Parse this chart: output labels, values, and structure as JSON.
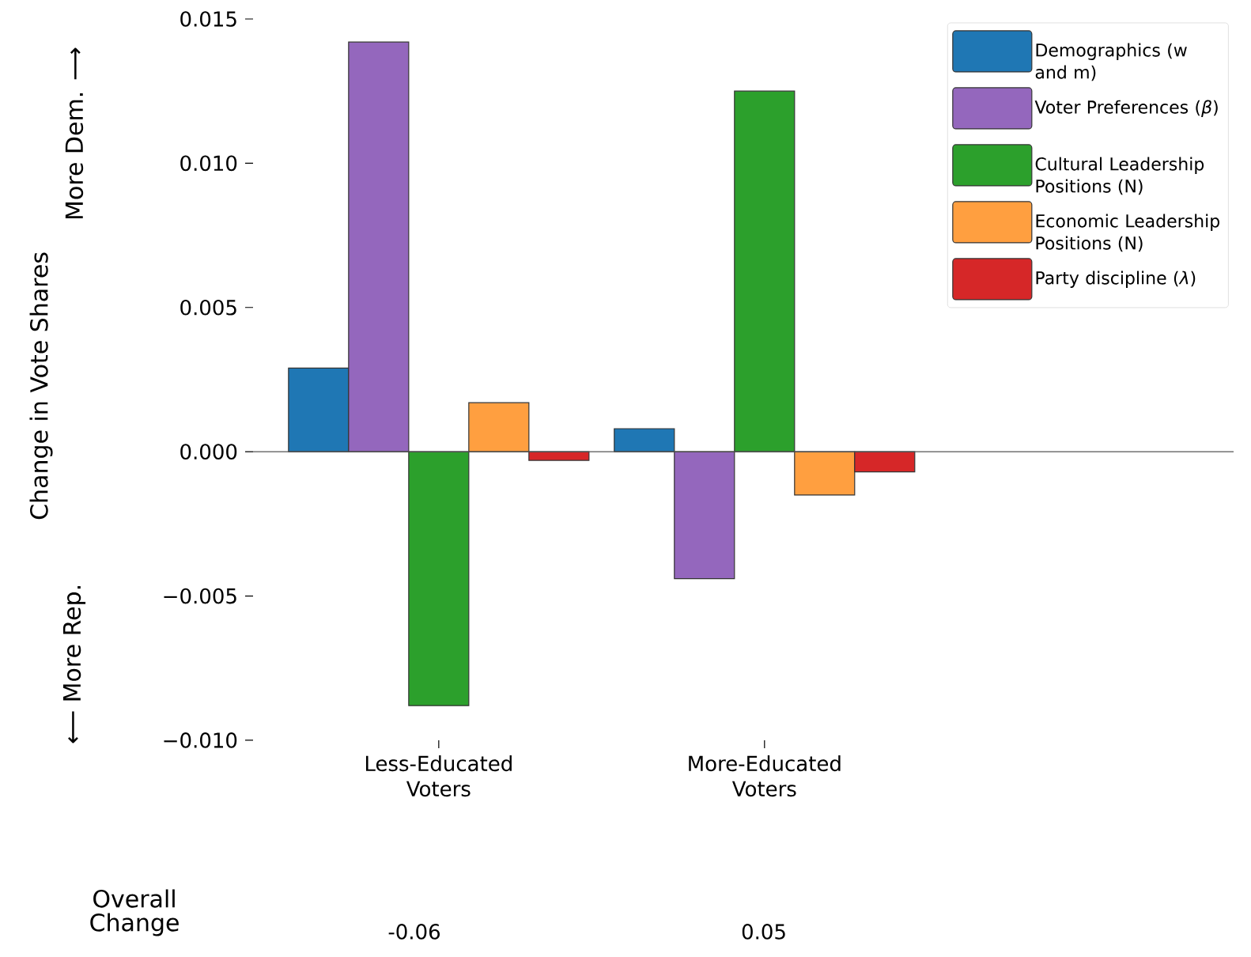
{
  "chart_data": {
    "type": "bar",
    "categories": [
      "Less-Educated Voters",
      "More-Educated Voters"
    ],
    "ylabel": "Change in Vote Shares",
    "series": [
      {
        "name": "Demographics (w and m)",
        "color": "#1f77b4",
        "values": [
          0.0029,
          0.0008
        ]
      },
      {
        "name": "Voter Preferences (*β*)",
        "color": "#9467bd",
        "values": [
          0.0142,
          -0.0044
        ]
      },
      {
        "name": "Cultural Leadership Positions (N)",
        "color": "#2ca02c",
        "values": [
          -0.0088,
          0.0125
        ]
      },
      {
        "name": "Economic Leadership Positions (N)",
        "color": "#ff9f40",
        "values": [
          0.0017,
          -0.0015
        ]
      },
      {
        "name": "Party discipline (*λ*)",
        "color": "#d62728",
        "values": [
          -0.0003,
          -0.0007
        ]
      }
    ],
    "ylim": [
      -0.01,
      0.015
    ],
    "ref_lines": [
      {
        "axis": "y",
        "value": 0,
        "color": "#555555"
      }
    ],
    "yticks": [
      {
        "value": -0.01,
        "label": "−0.010"
      },
      {
        "value": -0.005,
        "label": "−0.005"
      },
      {
        "value": 0,
        "label": "0.000"
      },
      {
        "value": 0.005,
        "label": "0.005"
      },
      {
        "value": 0.01,
        "label": "0.010"
      },
      {
        "value": 0.015,
        "label": "0.015"
      }
    ],
    "legend": "top right",
    "annotations": [
      "⟵ More Rep.",
      "More Dem. ⟶",
      "Overall Change",
      "-0.06",
      "0.05"
    ]
  }
}
